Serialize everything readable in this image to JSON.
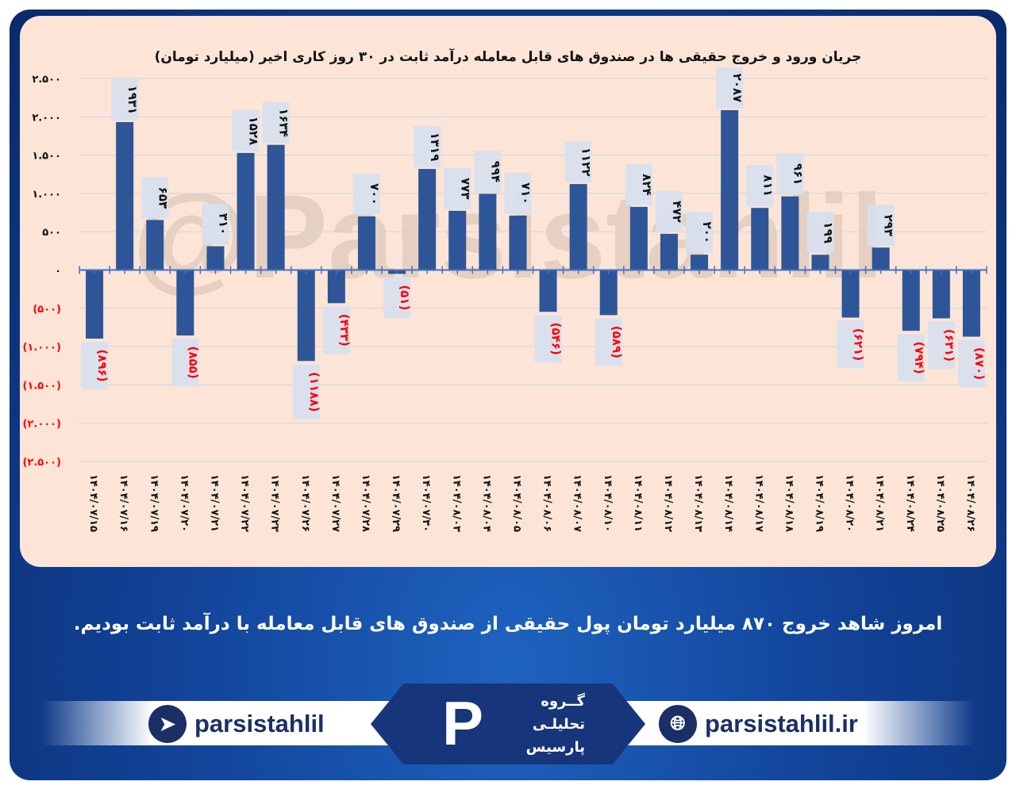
{
  "chart_data": {
    "type": "bar",
    "title": "جریان ورود و خروج حقیقی ها در صندوق های قابل معامله درآمد ثابت در ۳۰ روز کاری اخیر (میلیارد تومان)",
    "categories": [
      "۱۴۰۴/۰۷/۱۵",
      "۱۴۰۴/۰۷/۱۶",
      "۱۴۰۴/۰۷/۱۹",
      "۱۴۰۴/۰۷/۲۰",
      "۱۴۰۴/۰۷/۲۱",
      "۱۴۰۴/۰۷/۲۲",
      "۱۴۰۴/۰۷/۲۳",
      "۱۴۰۴/۰۷/۲۶",
      "۱۴۰۴/۰۷/۲۷",
      "۱۴۰۴/۰۷/۲۸",
      "۱۴۰۴/۰۷/۲۹",
      "۱۴۰۴/۰۷/۳۰",
      "۱۴۰۴/۰۸/۰۳",
      "۱۴۰۴/۰۸/۰۴",
      "۱۴۰۴/۰۸/۰۵",
      "۱۴۰۴/۰۸/۰۶",
      "۱۴۰۴/۰۸/۰۷",
      "۱۴۰۴/۰۸/۱۰",
      "۱۴۰۴/۰۸/۱۱",
      "۱۴۰۴/۰۸/۱۲",
      "۱۴۰۴/۰۸/۱۳",
      "۱۴۰۴/۰۸/۱۴",
      "۱۴۰۴/۰۸/۱۷",
      "۱۴۰۴/۰۸/۱۸",
      "۱۴۰۴/۰۸/۱۹",
      "۱۴۰۴/۰۸/۲۰",
      "۱۴۰۴/۰۸/۲۱",
      "۱۴۰۴/۰۸/۲۴",
      "۱۴۰۴/۰۸/۲۵",
      "۱۴۰۴/۰۸/۲۶"
    ],
    "values": [
      -896,
      1931,
      653,
      -855,
      310,
      1528,
      1634,
      -1188,
      -433,
      700,
      -51,
      1319,
      773,
      994,
      710,
      -546,
      1122,
      -589,
      824,
      472,
      200,
      2087,
      811,
      961,
      199,
      -621,
      293,
      -794,
      -631,
      -870
    ],
    "data_labels": [
      "(۸۹۶)",
      "۱۹۳۱",
      "۶۵۳",
      "(۸۵۵)",
      "۳۱۰",
      "۱۵۲۸",
      "۱۶۳۴",
      "(۱۱۸۸)",
      "(۴۳۳)",
      "۷۰۰",
      "(۵۱)",
      "۱۳۱۹",
      "۷۷۳",
      "۹۹۴",
      "۷۱۰",
      "(۵۴۶)",
      "۱۱۲۲",
      "(۵۸۹)",
      "۸۲۴",
      "۴۷۲",
      "۲۰۰",
      "۲۰۸۷",
      "۸۱۱",
      "۹۶۱",
      "۱۹۹",
      "(۶۲۱)",
      "۲۹۳",
      "(۷۹۴)",
      "(۶۳۱)",
      "(۸۷۰)"
    ],
    "yticks": [
      2500,
      2000,
      1500,
      1000,
      500,
      0,
      -500,
      -1000,
      -1500,
      -2000,
      -2500
    ],
    "ytick_labels": [
      "۲.۵۰۰",
      "۲.۰۰۰",
      "۱.۵۰۰",
      "۱.۰۰۰",
      "۵۰۰",
      "۰",
      "(۵۰۰)",
      "(۱.۰۰۰)",
      "(۱.۵۰۰)",
      "(۲.۰۰۰)",
      "(۲.۵۰۰)"
    ],
    "ylim": [
      -2500,
      2500
    ],
    "grid": true,
    "xlabel": "",
    "ylabel": "",
    "colors": {
      "bar": "#2e5597",
      "positive_label": "#111111",
      "negative_label": "#ff0000",
      "label_box": "#d6e0ef",
      "grid": "#c9d6e6",
      "axis": "#4472c4"
    }
  },
  "watermark": "@Parsistahlil",
  "caption": "امروز شاهد خروج ۸۷۰ میلیارد تومان پول حقیقی از صندوق های قابل معامله با درآمد ثابت بودیم.",
  "footer": {
    "telegram": {
      "icon": "telegram-icon",
      "label": "parsistahlil"
    },
    "website": {
      "icon": "globe-icon",
      "label": "parsistahlil.ir"
    },
    "logo_text": [
      "گــروه",
      "تحلیلـی",
      "پارسیس"
    ]
  }
}
